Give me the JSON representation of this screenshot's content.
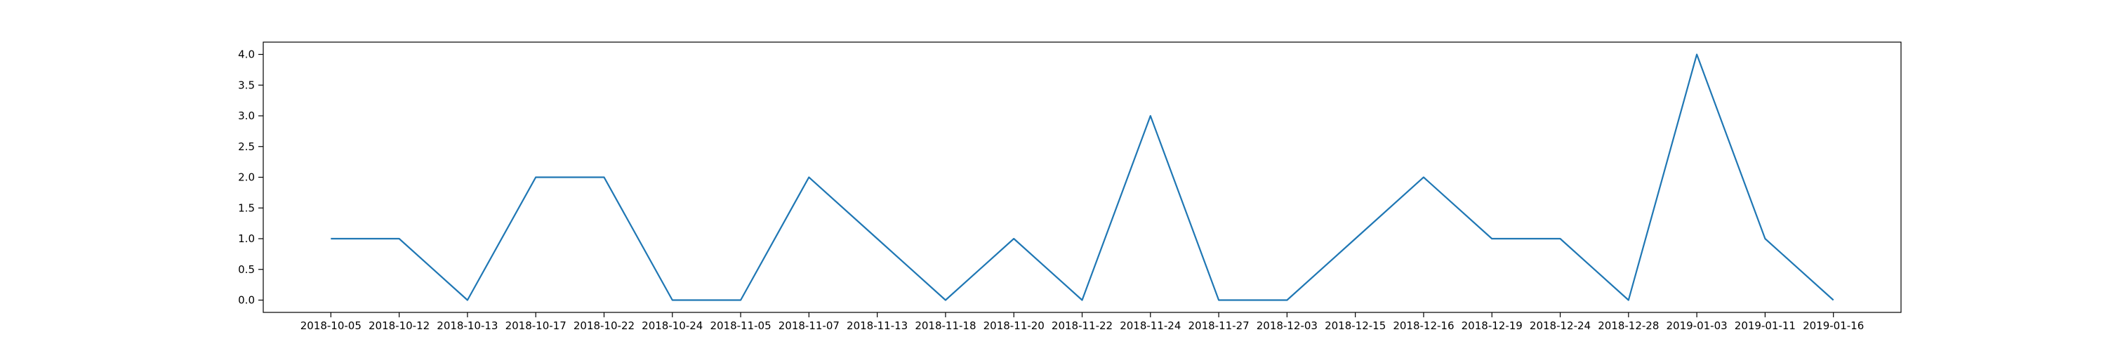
{
  "chart_data": {
    "type": "line",
    "title": "",
    "xlabel": "",
    "ylabel": "",
    "categories": [
      "2018-10-05",
      "2018-10-12",
      "2018-10-13",
      "2018-10-17",
      "2018-10-22",
      "2018-10-24",
      "2018-11-05",
      "2018-11-07",
      "2018-11-13",
      "2018-11-18",
      "2018-11-20",
      "2018-11-22",
      "2018-11-24",
      "2018-11-27",
      "2018-12-03",
      "2018-12-15",
      "2018-12-16",
      "2018-12-19",
      "2018-12-24",
      "2018-12-28",
      "2019-01-03",
      "2019-01-11",
      "2019-01-16"
    ],
    "series": [
      {
        "values": [
          1,
          1,
          0,
          2,
          2,
          0,
          0,
          2,
          1,
          0,
          1,
          0,
          3,
          0,
          0,
          1,
          2,
          1,
          1,
          0,
          4,
          1,
          0
        ]
      }
    ],
    "ylim": [
      -0.2,
      4.2
    ],
    "yticks": [
      0.0,
      0.5,
      1.0,
      1.5,
      2.0,
      2.5,
      3.0,
      3.5,
      4.0
    ],
    "ytick_labels": [
      "0.0",
      "0.5",
      "1.0",
      "1.5",
      "2.0",
      "2.5",
      "3.0",
      "3.5",
      "4.0"
    ],
    "grid": false,
    "line_color": "#1f77b4"
  }
}
